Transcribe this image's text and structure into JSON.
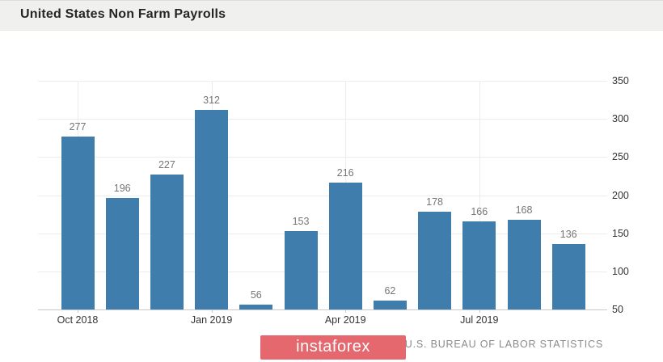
{
  "header": {
    "title": "United States Non Farm Payrolls"
  },
  "chart_data": {
    "type": "bar",
    "title": "United States Non Farm Payrolls",
    "values": [
      277,
      196,
      227,
      312,
      56,
      153,
      216,
      62,
      178,
      166,
      168,
      136
    ],
    "value_labels": [
      "277",
      "196",
      "227",
      "312",
      "56",
      "153",
      "216",
      "62",
      "178",
      "166",
      "168",
      "136"
    ],
    "x_ticks": [
      {
        "index": 0,
        "label": "Oct 2018"
      },
      {
        "index": 3,
        "label": "Jan 2019"
      },
      {
        "index": 6,
        "label": "Apr 2019"
      },
      {
        "index": 9,
        "label": "Jul 2019"
      }
    ],
    "y_ticks": [
      350,
      300,
      250,
      200,
      150,
      100,
      50
    ],
    "ylim": [
      50,
      350
    ],
    "y_axis_position": "right",
    "grid": "horizontal lines every 50 units; vertical lines at labeled quarter ticks",
    "bar_color": "#3f7eac",
    "value_label_color": "#757575",
    "axis_label_color": "#333333",
    "gridline_color": "#ececec"
  },
  "footer": {
    "watermark_text": "instaforex",
    "watermark_bg": "#e4686d",
    "source_text": "U.S. BUREAU OF LABOR STATISTICS"
  }
}
